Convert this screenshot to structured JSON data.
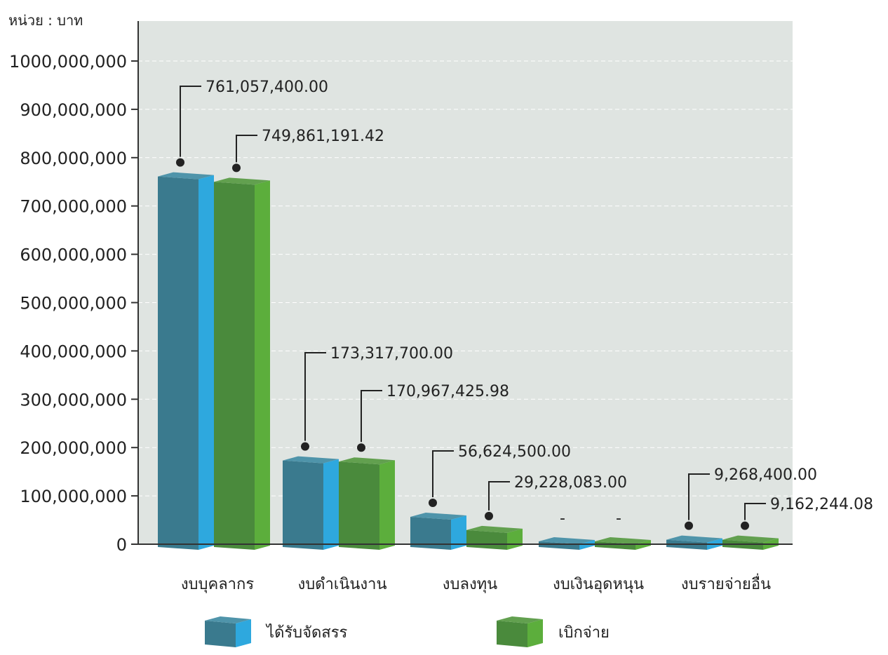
{
  "chart_data": {
    "type": "bar",
    "unit_label": "หน่วย : บาท",
    "ylim": [
      0,
      1000000000
    ],
    "y_ticks": [
      0,
      100000000,
      200000000,
      300000000,
      400000000,
      500000000,
      600000000,
      700000000,
      800000000,
      900000000,
      1000000000
    ],
    "y_tick_labels": [
      "0",
      "100,000,000",
      "200,000,000",
      "300,000,000",
      "400,000,000",
      "500,000,000",
      "600,000,000",
      "700,000,000",
      "800,000,000",
      "900,000,000",
      "1000,000,000"
    ],
    "grid": true,
    "categories": [
      "งบบุคลากร",
      "งบดำเนินงาน",
      "งบลงทุน",
      "งบเงินอุดหนุน",
      "งบรายจ่ายอื่น"
    ],
    "series": [
      {
        "name": "ได้รับจัดสรร",
        "values": [
          761057400.0,
          173317700.0,
          56624500.0,
          0,
          9268400.0
        ],
        "labels": [
          "761,057,400.00",
          "173,317,700.00",
          "56,624,500.00",
          "-",
          "9,268,400.00"
        ],
        "color": "#3a7a8e",
        "color_side": "#2ea8de",
        "color_top": "#4f94aa"
      },
      {
        "name": "เบิกจ่าย",
        "values": [
          749861191.42,
          170967425.98,
          29228083.0,
          0,
          9162244.08
        ],
        "labels": [
          "749,861,191.42",
          "170,967,425.98",
          "29,228,083.00",
          "-",
          "9,162,244.08"
        ],
        "color": "#4a8a3c",
        "color_side": "#5cae3c",
        "color_top": "#62a04f"
      }
    ],
    "legend_position": "bottom"
  }
}
